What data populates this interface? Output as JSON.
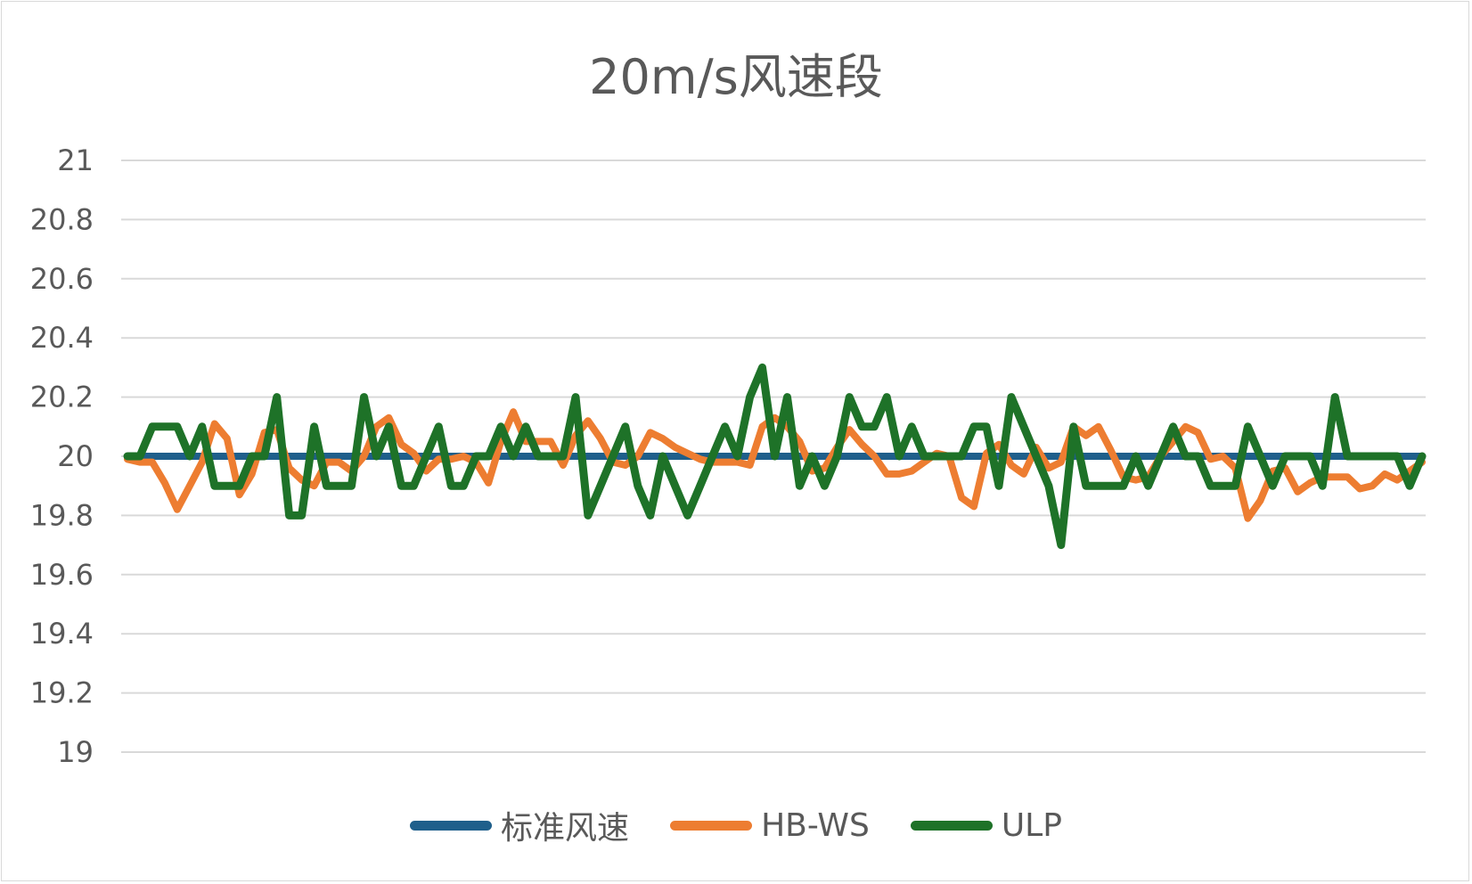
{
  "chart_data": {
    "type": "line",
    "title": "20m/s风速段",
    "xlabel": "",
    "ylabel": "",
    "ylim": [
      19,
      21
    ],
    "yticks": [
      "21",
      "20.8",
      "20.6",
      "20.4",
      "20.2",
      "20",
      "19.8",
      "19.6",
      "19.4",
      "19.2",
      "19"
    ],
    "grid": true,
    "legend_position": "bottom",
    "x": [
      1,
      2,
      3,
      4,
      5,
      6,
      7,
      8,
      9,
      10,
      11,
      12,
      13,
      14,
      15,
      16,
      17,
      18,
      19,
      20,
      21,
      22,
      23,
      24,
      25,
      26,
      27,
      28,
      29,
      30,
      31,
      32,
      33,
      34,
      35,
      36,
      37,
      38,
      39,
      40,
      41,
      42,
      43,
      44,
      45,
      46,
      47,
      48,
      49,
      50,
      51,
      52,
      53,
      54,
      55,
      56,
      57,
      58,
      59,
      60,
      61,
      62,
      63,
      64,
      65,
      66,
      67,
      68,
      69,
      70,
      71,
      72,
      73,
      74,
      75,
      76,
      77,
      78,
      79,
      80,
      81,
      82,
      83,
      84,
      85,
      86,
      87,
      88,
      89,
      90,
      91,
      92,
      93,
      94,
      95,
      96,
      97,
      98,
      99,
      100,
      101,
      102,
      103,
      104,
      105
    ],
    "series": [
      {
        "name": "标准风速",
        "color": "#1f5f8b",
        "values": [
          20,
          20,
          20,
          20,
          20,
          20,
          20,
          20,
          20,
          20,
          20,
          20,
          20,
          20,
          20,
          20,
          20,
          20,
          20,
          20,
          20,
          20,
          20,
          20,
          20,
          20,
          20,
          20,
          20,
          20,
          20,
          20,
          20,
          20,
          20,
          20,
          20,
          20,
          20,
          20,
          20,
          20,
          20,
          20,
          20,
          20,
          20,
          20,
          20,
          20,
          20,
          20,
          20,
          20,
          20,
          20,
          20,
          20,
          20,
          20,
          20,
          20,
          20,
          20,
          20,
          20,
          20,
          20,
          20,
          20,
          20,
          20,
          20,
          20,
          20,
          20,
          20,
          20,
          20,
          20,
          20,
          20,
          20,
          20,
          20,
          20,
          20,
          20,
          20,
          20,
          20,
          20,
          20,
          20,
          20,
          20,
          20,
          20,
          20,
          20,
          20,
          20,
          20,
          20,
          20
        ]
      },
      {
        "name": "HB-WS",
        "color": "#ed7d31",
        "values": [
          19.99,
          19.98,
          19.98,
          19.91,
          19.82,
          19.9,
          19.98,
          20.11,
          20.06,
          19.87,
          19.94,
          20.08,
          20.09,
          19.96,
          19.92,
          19.9,
          19.98,
          19.98,
          19.95,
          20.0,
          20.1,
          20.13,
          20.04,
          20.01,
          19.95,
          19.99,
          19.99,
          20.0,
          19.98,
          19.91,
          20.05,
          20.15,
          20.05,
          20.05,
          20.05,
          19.97,
          20.07,
          20.12,
          20.06,
          19.98,
          19.97,
          20.0,
          20.08,
          20.06,
          20.03,
          20.01,
          19.99,
          19.98,
          19.98,
          19.98,
          19.97,
          20.1,
          20.13,
          20.1,
          20.05,
          19.95,
          19.96,
          20.03,
          20.09,
          20.04,
          20.0,
          19.94,
          19.94,
          19.95,
          19.98,
          20.01,
          20.0,
          19.86,
          19.83,
          20.01,
          20.04,
          19.97,
          19.94,
          20.03,
          19.96,
          19.98,
          20.1,
          20.07,
          20.1,
          20.02,
          19.93,
          19.92,
          19.93,
          20.0,
          20.05,
          20.1,
          20.08,
          19.99,
          20.0,
          19.96,
          19.79,
          19.85,
          19.95,
          19.96,
          19.88,
          19.91,
          19.93,
          19.93,
          19.93,
          19.89,
          19.9,
          19.94,
          19.92,
          19.95,
          19.98
        ]
      },
      {
        "name": "ULP",
        "color": "#1e7228",
        "values": [
          20,
          20,
          20.1,
          20.1,
          20.1,
          20,
          20.1,
          19.9,
          19.9,
          19.9,
          20,
          20,
          20.2,
          19.8,
          19.8,
          20.1,
          19.9,
          19.9,
          19.9,
          20.2,
          20,
          20.1,
          19.9,
          19.9,
          20,
          20.1,
          19.9,
          19.9,
          20,
          20,
          20.1,
          20,
          20.1,
          20,
          20,
          20,
          20.2,
          19.8,
          19.9,
          20,
          20.1,
          19.9,
          19.8,
          20,
          19.9,
          19.8,
          19.9,
          20,
          20.1,
          20,
          20.2,
          20.3,
          20,
          20.2,
          19.9,
          20,
          19.9,
          20,
          20.2,
          20.1,
          20.1,
          20.2,
          20,
          20.1,
          20,
          20,
          20,
          20,
          20.1,
          20.1,
          19.9,
          20.2,
          20.1,
          20,
          19.9,
          19.7,
          20.1,
          19.9,
          19.9,
          19.9,
          19.9,
          20,
          19.9,
          20,
          20.1,
          20,
          20,
          19.9,
          19.9,
          19.9,
          20.1,
          20,
          19.9,
          20,
          20,
          20,
          19.9,
          20.2,
          20,
          20,
          20,
          20,
          20,
          19.9,
          20
        ]
      }
    ]
  }
}
